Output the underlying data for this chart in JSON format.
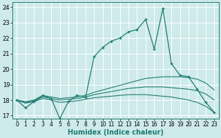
{
  "xlabel": "Humidex (Indice chaleur)",
  "bg_color": "#ceeaea",
  "line_color": "#1a7a6e",
  "grid_color": "#b8d8d8",
  "xlim": [
    -0.5,
    23.5
  ],
  "ylim": [
    16.8,
    24.3
  ],
  "yticks": [
    17,
    18,
    19,
    20,
    21,
    22,
    23,
    24
  ],
  "xticks": [
    0,
    1,
    2,
    3,
    4,
    5,
    6,
    7,
    8,
    9,
    10,
    11,
    12,
    13,
    14,
    15,
    16,
    17,
    18,
    19,
    20,
    21,
    22,
    23
  ],
  "series": [
    {
      "x": [
        0,
        1,
        2,
        3,
        4,
        5,
        6,
        7,
        8,
        9,
        10,
        11,
        12,
        13,
        14,
        15,
        16,
        17,
        18,
        19,
        20,
        21,
        22,
        23
      ],
      "y": [
        18.0,
        17.5,
        17.9,
        18.3,
        18.1,
        16.8,
        17.9,
        18.3,
        18.2,
        20.8,
        21.4,
        21.8,
        22.0,
        22.4,
        22.55,
        23.2,
        21.3,
        23.9,
        20.35,
        19.6,
        19.5,
        18.7,
        17.85,
        17.2
      ],
      "marker": true
    },
    {
      "x": [
        0,
        1,
        2,
        3,
        4,
        5,
        6,
        7,
        8,
        9,
        10,
        11,
        12,
        13,
        14,
        15,
        16,
        17,
        18,
        19,
        20,
        21,
        22,
        23
      ],
      "y": [
        18.0,
        17.9,
        18.0,
        18.3,
        18.2,
        18.1,
        18.15,
        18.2,
        18.3,
        18.5,
        18.65,
        18.8,
        18.95,
        19.1,
        19.25,
        19.4,
        19.45,
        19.5,
        19.5,
        19.5,
        19.45,
        19.35,
        19.1,
        18.65
      ],
      "marker": false
    },
    {
      "x": [
        0,
        1,
        2,
        3,
        4,
        5,
        6,
        7,
        8,
        9,
        10,
        11,
        12,
        13,
        14,
        15,
        16,
        17,
        18,
        19,
        20,
        21,
        22,
        23
      ],
      "y": [
        18.0,
        17.85,
        17.95,
        18.2,
        18.1,
        18.0,
        18.05,
        18.1,
        18.2,
        18.35,
        18.45,
        18.55,
        18.65,
        18.75,
        18.8,
        18.85,
        18.85,
        18.85,
        18.8,
        18.75,
        18.7,
        18.6,
        18.4,
        18.0
      ],
      "marker": false
    },
    {
      "x": [
        0,
        1,
        2,
        3,
        4,
        5,
        6,
        7,
        8,
        9,
        10,
        11,
        12,
        13,
        14,
        15,
        16,
        17,
        18,
        19,
        20,
        21,
        22,
        23
      ],
      "y": [
        18.0,
        17.8,
        17.9,
        18.1,
        18.0,
        17.85,
        17.9,
        17.95,
        18.05,
        18.15,
        18.2,
        18.25,
        18.3,
        18.35,
        18.35,
        18.35,
        18.3,
        18.25,
        18.2,
        18.1,
        18.0,
        17.85,
        17.6,
        17.2
      ],
      "marker": false
    }
  ]
}
